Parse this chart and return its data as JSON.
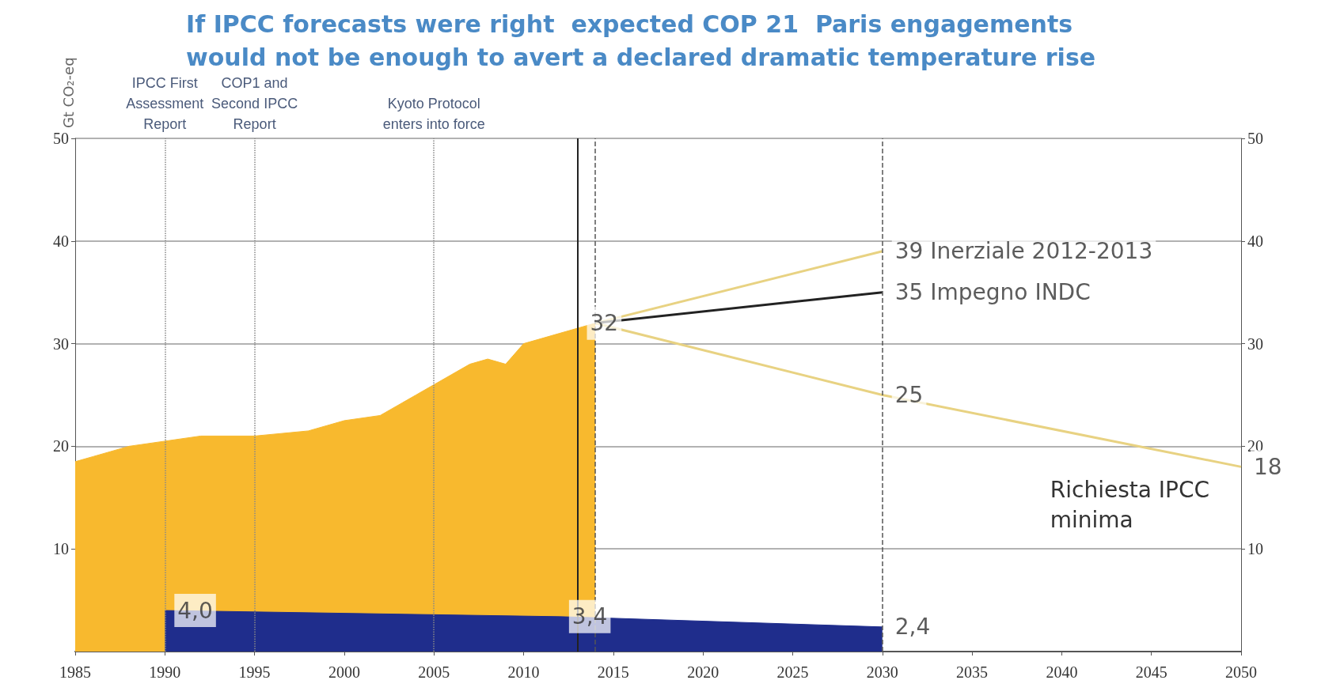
{
  "chart_data": {
    "type": "area",
    "title": "If IPCC forecasts were right  expected COP 21  Paris engagements\nwould not be enough to avert a declared dramatic temperature rise",
    "ylabel": "Gt CO₂-eq",
    "xlim": [
      1985,
      2050
    ],
    "xticks": [
      1985,
      1990,
      1995,
      2000,
      2005,
      2010,
      2015,
      2020,
      2025,
      2030,
      2035,
      2040,
      2045,
      2050
    ],
    "ylim": [
      0,
      50
    ],
    "yticks": [
      10,
      20,
      30,
      40,
      50
    ],
    "y2lim": [
      0,
      50
    ],
    "y2ticks": [
      10,
      20,
      30,
      40,
      50
    ],
    "grid": "y",
    "marker": "none",
    "series": [
      {
        "color": "#f8b92e",
        "x": [
          1985,
          1986,
          1988,
          1990,
          1992,
          1995,
          1998,
          2000,
          2002,
          2004,
          2005,
          2006,
          2007,
          2008,
          2009,
          2010,
          2011,
          2012,
          2013,
          2014
        ],
        "values": [
          18.5,
          19,
          20,
          20.5,
          21,
          21,
          21.5,
          22.5,
          23,
          25,
          26,
          27,
          28,
          28.5,
          28,
          30,
          30.5,
          31,
          31.5,
          32
        ]
      },
      {
        "type": "area",
        "color": "#1f2d8c",
        "x": [
          1990,
          2012,
          2014,
          2030
        ],
        "values": [
          4.0,
          3.4,
          3.3,
          2.4
        ]
      },
      {
        "type": "line",
        "color": "#e8d282",
        "x": [
          2014,
          2030
        ],
        "values": [
          32,
          39
        ]
      },
      {
        "type": "line",
        "color": "#222222",
        "x": [
          2014,
          2030
        ],
        "values": [
          32,
          35
        ]
      },
      {
        "type": "line",
        "color": "#e8d282",
        "x": [
          2014,
          2030,
          2050
        ],
        "values": [
          32,
          25,
          18
        ]
      }
    ],
    "ref_lines": [
      {
        "axis": "x",
        "value": 1990,
        "label": "IPCC First\nAssessment\nReport",
        "line_style": "dotted",
        "color": "#888888"
      },
      {
        "axis": "x",
        "value": 1995,
        "label": "COP1 and\nSecond IPCC\nReport",
        "line_style": "dotted",
        "color": "#888888"
      },
      {
        "axis": "x",
        "value": 2005,
        "label": "Kyoto Protocol\nenters into force",
        "line_style": "dotted",
        "color": "#888888"
      },
      {
        "axis": "x",
        "value": 2013,
        "line_style": "solid",
        "color": "#222222"
      },
      {
        "axis": "x",
        "value": 2014,
        "line_style": "dashed",
        "color": "#555555"
      },
      {
        "axis": "x",
        "value": 2030,
        "line_style": "dashed",
        "color": "#555555"
      }
    ],
    "annotations": [
      {
        "text": "32",
        "x": 2013,
        "y": 32
      },
      {
        "text": "39 Inerziale 2012-2013",
        "x": 2030,
        "y": 39
      },
      {
        "text": "35 Impegno INDC",
        "x": 2030,
        "y": 35
      },
      {
        "text": "25",
        "x": 2030,
        "y": 25
      },
      {
        "text": "18",
        "x": 2050,
        "y": 18
      },
      "Richiesta IPCC\nminima",
      {
        "text": "4,0",
        "x": 1990,
        "y": 4.0
      },
      {
        "text": "3,4",
        "x": 2012,
        "y": 3.4
      },
      {
        "text": "2,4",
        "x": 2030,
        "y": 2.4
      }
    ]
  }
}
